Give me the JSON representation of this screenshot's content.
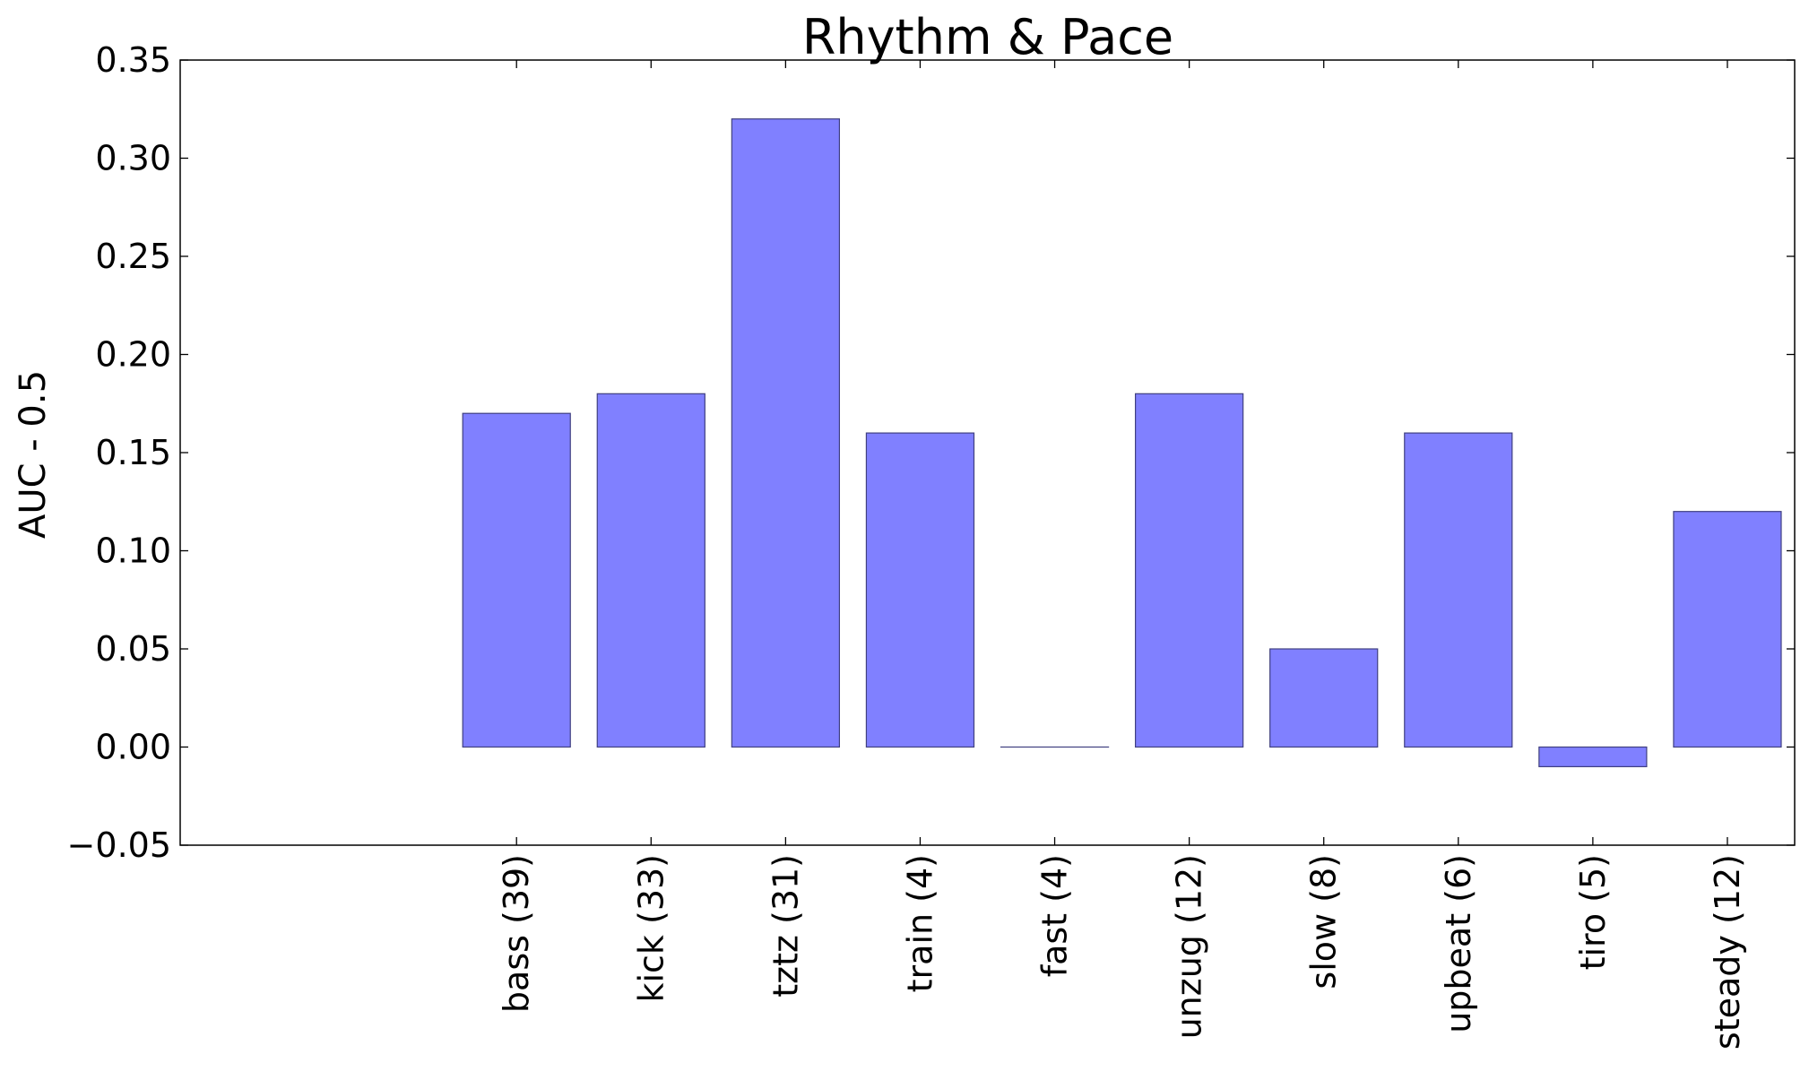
{
  "chart_data": {
    "type": "bar",
    "title": "Rhythm & Pace",
    "xlabel": "",
    "ylabel": "AUC - 0.5",
    "categories": [
      "bass (39)",
      "kick (33)",
      "tztz (31)",
      "train (4)",
      "fast (4)",
      "unzug (12)",
      "slow (8)",
      "upbeat (6)",
      "tiro (5)",
      "steady (12)"
    ],
    "values": [
      0.17,
      0.18,
      0.32,
      0.16,
      0.0,
      0.18,
      0.05,
      0.16,
      -0.01,
      0.12
    ],
    "ylim": [
      -0.05,
      0.35
    ],
    "yticks": [
      "−0.05",
      "0.00",
      "0.05",
      "0.10",
      "0.15",
      "0.20",
      "0.25",
      "0.30",
      "0.35"
    ],
    "grid": false,
    "bar_color": "#8080ff",
    "edge_color": "#404080"
  }
}
